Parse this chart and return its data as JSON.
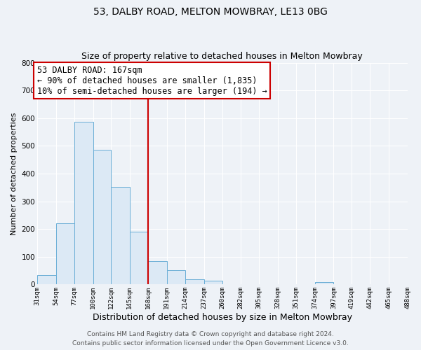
{
  "title": "53, DALBY ROAD, MELTON MOWBRAY, LE13 0BG",
  "subtitle": "Size of property relative to detached houses in Melton Mowbray",
  "xlabel": "Distribution of detached houses by size in Melton Mowbray",
  "ylabel": "Number of detached properties",
  "bin_edges": [
    31,
    54,
    77,
    100,
    122,
    145,
    168,
    191,
    214,
    237,
    260,
    282,
    305,
    328,
    351,
    374,
    397,
    419,
    442,
    465,
    488
  ],
  "bin_heights": [
    33,
    220,
    588,
    487,
    352,
    190,
    85,
    52,
    18,
    13,
    0,
    0,
    0,
    0,
    0,
    8,
    0,
    0,
    0,
    0
  ],
  "bar_facecolor": "#dce9f5",
  "bar_edgecolor": "#6aaed6",
  "vline_x": 168,
  "vline_color": "#cc0000",
  "annotation_line1": "53 DALBY ROAD: 167sqm",
  "annotation_line2": "← 90% of detached houses are smaller (1,835)",
  "annotation_line3": "10% of semi-detached houses are larger (194) →",
  "annotation_box_edgecolor": "#cc0000",
  "annotation_box_facecolor": "#ffffff",
  "annotation_fontsize": 8.5,
  "ylim": [
    0,
    800
  ],
  "yticks": [
    0,
    100,
    200,
    300,
    400,
    500,
    600,
    700,
    800
  ],
  "tick_labels": [
    "31sqm",
    "54sqm",
    "77sqm",
    "100sqm",
    "122sqm",
    "145sqm",
    "168sqm",
    "191sqm",
    "214sqm",
    "237sqm",
    "260sqm",
    "282sqm",
    "305sqm",
    "328sqm",
    "351sqm",
    "374sqm",
    "397sqm",
    "419sqm",
    "442sqm",
    "465sqm",
    "488sqm"
  ],
  "footer_line1": "Contains HM Land Registry data © Crown copyright and database right 2024.",
  "footer_line2": "Contains public sector information licensed under the Open Government Licence v3.0.",
  "background_color": "#eef2f7",
  "plot_bg_color": "#eef2f7",
  "grid_color": "#ffffff",
  "title_fontsize": 10,
  "subtitle_fontsize": 9,
  "xlabel_fontsize": 9,
  "ylabel_fontsize": 8,
  "footer_fontsize": 6.5
}
